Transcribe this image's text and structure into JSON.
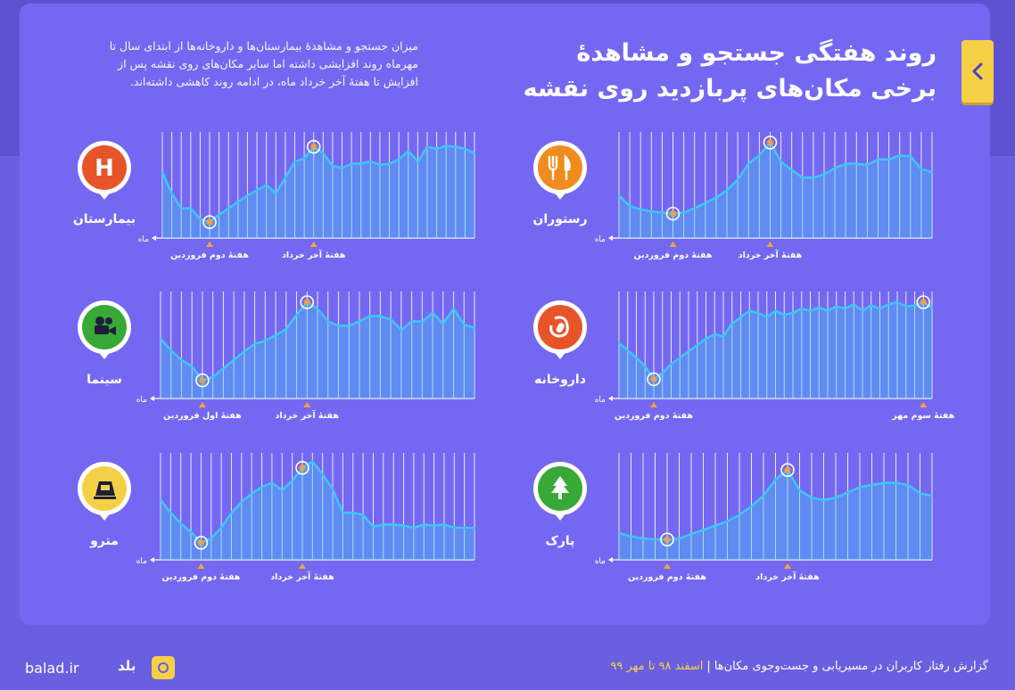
{
  "header": {
    "title_line1": "روند هفتگی جستجو و مشاهدهٔ",
    "title_line2": "برخی مکان‌های پربازدید روی نقشه",
    "description_line1": "میزان جستجو و مشاهدهٔ بیمارستان‌ها و داروخانه‌ها از ابتدای سال تا",
    "description_line2": "مهرماه روند افزایشی داشته اما سایر مکان‌های روی نقشه پس از",
    "description_line3": "افزایش تا هفتهٔ آخر خرداد ماه، در ادامه روند کاهشی داشته‌اند."
  },
  "footer": {
    "site": "balad.ir",
    "brand": "بلد",
    "report": "گزارش رفتار کاربران در مسیریابی و جست‌وجوی مکان‌ها",
    "separator": "|",
    "period": "اسفند ۹۸ تا مهر ۹۹"
  },
  "colors": {
    "background": "#6a5fe0",
    "card": "#7468f3",
    "line": "#3ec6f2",
    "marker": "#f5a23c",
    "accent_yellow": "#f5d046"
  },
  "chart_data": [
    {
      "type": "area",
      "category": "بیمارستان",
      "icon": "hospital-icon",
      "icon_color": "#e8542a",
      "axis_label": "ماه",
      "values": [
        62,
        42,
        28,
        28,
        18,
        15,
        22,
        28,
        34,
        40,
        45,
        50,
        42,
        57,
        72,
        75,
        86,
        80,
        68,
        66,
        70,
        70,
        72,
        69,
        70,
        74,
        82,
        72,
        86,
        84,
        87,
        86,
        84,
        80
      ],
      "annotations": [
        {
          "index": 5,
          "label": "هفتهٔ دوم فروردین"
        },
        {
          "index": 16,
          "label": "هفتهٔ آخر خرداد"
        }
      ]
    },
    {
      "type": "area",
      "category": "رستوران",
      "icon": "restaurant-icon",
      "icon_color": "#f08c1e",
      "axis_label": "ماه",
      "values": [
        40,
        30,
        27,
        25,
        24,
        23,
        24,
        28,
        33,
        38,
        45,
        55,
        70,
        78,
        90,
        72,
        64,
        57,
        57,
        60,
        66,
        70,
        70,
        69,
        74,
        74,
        78,
        77,
        65,
        62
      ],
      "annotations": [
        {
          "index": 5,
          "label": "هفتهٔ دوم فروردین"
        },
        {
          "index": 14,
          "label": "هفتهٔ آخر خرداد"
        }
      ]
    },
    {
      "type": "area",
      "category": "سینما",
      "icon": "cinema-icon",
      "icon_color": "#38a837",
      "axis_label": "ماه",
      "values": [
        56,
        45,
        36,
        30,
        17,
        20,
        28,
        36,
        44,
        51,
        54,
        59,
        65,
        78,
        90,
        84,
        72,
        68,
        68,
        72,
        77,
        77,
        74,
        64,
        72,
        72,
        80,
        70,
        84,
        69,
        66
      ],
      "annotations": [
        {
          "index": 4,
          "label": "هفتهٔ اول فروردین"
        },
        {
          "index": 14,
          "label": "هفتهٔ آخر خرداد"
        }
      ]
    },
    {
      "type": "area",
      "category": "داروخانه",
      "icon": "pharmacy-icon",
      "icon_color": "#e8542a",
      "axis_label": "ماه",
      "values": [
        52,
        45,
        38,
        30,
        18,
        24,
        32,
        38,
        44,
        50,
        56,
        60,
        58,
        70,
        76,
        82,
        80,
        76,
        82,
        78,
        80,
        84,
        82,
        85,
        82,
        86,
        84,
        88,
        82,
        87,
        84,
        88,
        90,
        86,
        87,
        90,
        85
      ],
      "annotations": [
        {
          "index": 4,
          "label": "هفتهٔ دوم فروردین"
        },
        {
          "index": 35,
          "label": "هفتهٔ سوم مهر"
        }
      ]
    },
    {
      "type": "area",
      "category": "مترو",
      "icon": "metro-icon",
      "icon_color": "#f5d046",
      "axis_label": "ماه",
      "values": [
        56,
        44,
        34,
        26,
        16,
        20,
        30,
        44,
        54,
        62,
        68,
        72,
        65,
        74,
        86,
        92,
        80,
        66,
        44,
        44,
        42,
        31,
        33,
        33,
        32,
        30,
        33,
        32,
        33,
        30,
        30,
        30
      ],
      "annotations": [
        {
          "index": 4,
          "label": "هفتهٔ دوم فروردین"
        },
        {
          "index": 14,
          "label": "هفتهٔ آخر خرداد"
        }
      ]
    },
    {
      "type": "area",
      "category": "پارک",
      "icon": "park-icon",
      "icon_color": "#38a837",
      "axis_label": "ماه",
      "values": [
        25,
        22,
        20,
        19,
        19,
        20,
        24,
        28,
        32,
        36,
        42,
        50,
        60,
        75,
        84,
        65,
        58,
        56,
        58,
        63,
        68,
        70,
        72,
        72,
        70,
        62,
        60
      ],
      "annotations": [
        {
          "index": 4,
          "label": "هفتهٔ دوم فروردین"
        },
        {
          "index": 14,
          "label": "هفتهٔ آخر خرداد"
        }
      ]
    }
  ]
}
